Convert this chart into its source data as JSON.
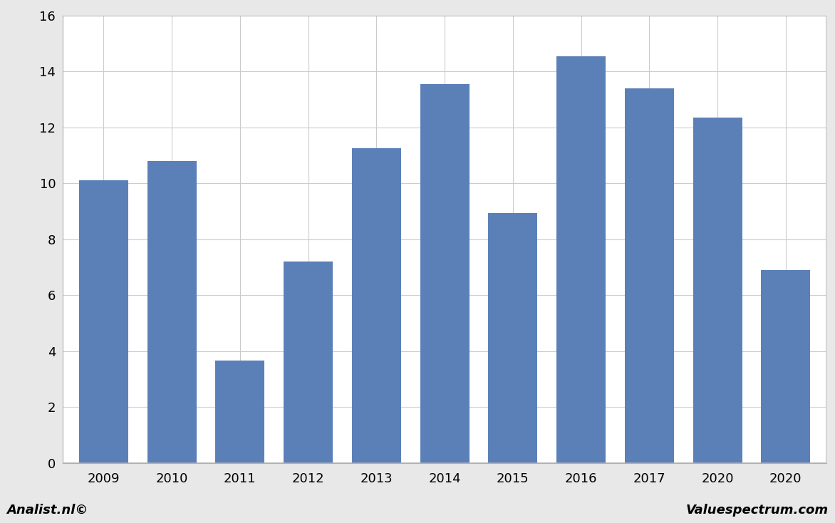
{
  "categories": [
    "2009",
    "2010",
    "2011",
    "2012",
    "2013",
    "2014",
    "2015",
    "2016",
    "2017",
    "2020",
    "2020"
  ],
  "values": [
    10.1,
    10.8,
    3.65,
    7.2,
    11.25,
    13.55,
    8.95,
    14.55,
    13.4,
    12.35,
    6.9
  ],
  "bar_color": "#5b80b8",
  "ylim": [
    0,
    16
  ],
  "yticks": [
    0,
    2,
    4,
    6,
    8,
    10,
    12,
    14,
    16
  ],
  "background_color": "#ffffff",
  "plot_background_color": "#ffffff",
  "outer_bg": "#e8e8e8",
  "footer_left": "Analist.nl©",
  "footer_right": "Valuespectrum.com",
  "footer_bg": "#c0c0c0",
  "grid_color": "#cccccc",
  "border_color": "#b0b0b0"
}
